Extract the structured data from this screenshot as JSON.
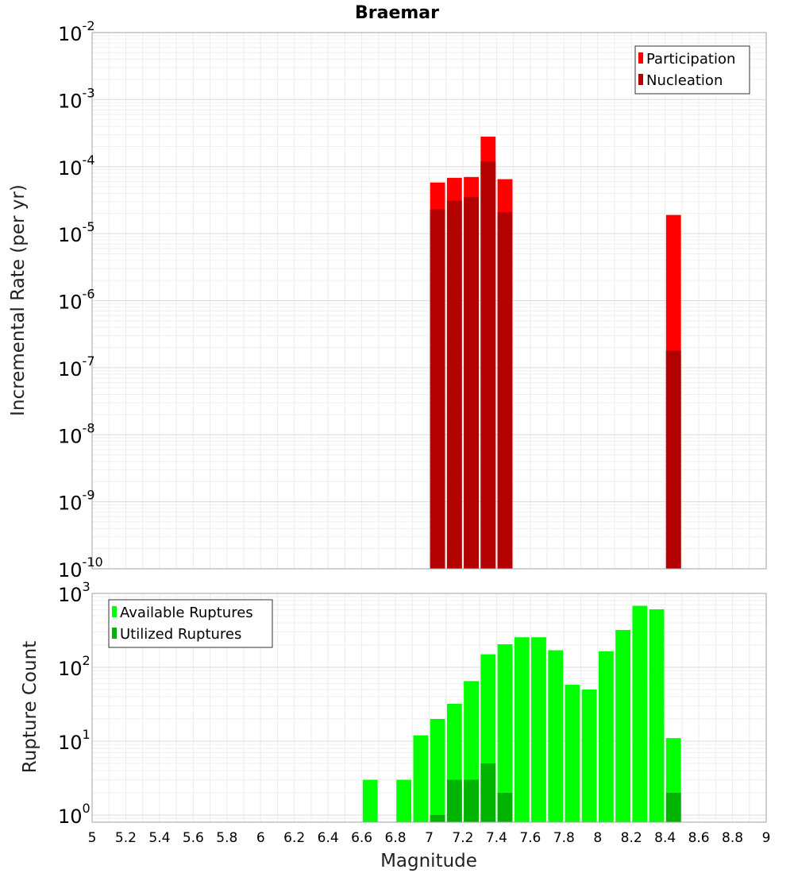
{
  "chart_data": [
    {
      "type": "bar",
      "title": "Braemar",
      "xlabel": "",
      "ylabel": "Incremental Rate (per yr)",
      "yscale": "log",
      "ylim": [
        1e-10,
        0.01
      ],
      "xlim": [
        5,
        9
      ],
      "ytick_exponents": [
        "-10",
        "-9",
        "-8",
        "-7",
        "-6",
        "-5",
        "-4",
        "-3",
        "-2"
      ],
      "legend": {
        "position": "top-right"
      },
      "series": [
        {
          "name": "Participation",
          "color": "#ff0000",
          "points": [
            {
              "x": 7.05,
              "y": 5.8e-05
            },
            {
              "x": 7.15,
              "y": 6.8e-05
            },
            {
              "x": 7.25,
              "y": 7e-05
            },
            {
              "x": 7.35,
              "y": 0.00028
            },
            {
              "x": 7.45,
              "y": 6.5e-05
            },
            {
              "x": 8.45,
              "y": 1.9e-05
            }
          ]
        },
        {
          "name": "Nucleation",
          "color": "#b30000",
          "points": [
            {
              "x": 7.05,
              "y": 2.3e-05
            },
            {
              "x": 7.15,
              "y": 3.1e-05
            },
            {
              "x": 7.25,
              "y": 3.5e-05
            },
            {
              "x": 7.35,
              "y": 0.00012
            },
            {
              "x": 7.45,
              "y": 2.1e-05
            },
            {
              "x": 8.45,
              "y": 1.8e-07
            }
          ]
        }
      ]
    },
    {
      "type": "bar",
      "title": "",
      "xlabel": "Magnitude",
      "ylabel": "Rupture Count",
      "yscale": "log",
      "ylim": [
        0.8,
        1000
      ],
      "xlim": [
        5,
        9
      ],
      "ytick_exponents": [
        "0",
        "1",
        "2",
        "3"
      ],
      "xticks": [
        "5",
        "5.2",
        "5.4",
        "5.6",
        "5.8",
        "6",
        "6.2",
        "6.4",
        "6.6",
        "6.8",
        "7",
        "7.2",
        "7.4",
        "7.6",
        "7.8",
        "8",
        "8.2",
        "8.4",
        "8.6",
        "8.8",
        "9"
      ],
      "legend": {
        "position": "top-left"
      },
      "series": [
        {
          "name": "Available Ruptures",
          "color": "#00ff00",
          "points": [
            {
              "x": 6.65,
              "y": 3
            },
            {
              "x": 6.85,
              "y": 3
            },
            {
              "x": 6.95,
              "y": 12
            },
            {
              "x": 7.05,
              "y": 20
            },
            {
              "x": 7.15,
              "y": 32
            },
            {
              "x": 7.25,
              "y": 65
            },
            {
              "x": 7.35,
              "y": 150
            },
            {
              "x": 7.45,
              "y": 205
            },
            {
              "x": 7.55,
              "y": 255
            },
            {
              "x": 7.65,
              "y": 255
            },
            {
              "x": 7.75,
              "y": 170
            },
            {
              "x": 7.85,
              "y": 58
            },
            {
              "x": 7.95,
              "y": 50
            },
            {
              "x": 8.05,
              "y": 165
            },
            {
              "x": 8.15,
              "y": 320
            },
            {
              "x": 8.25,
              "y": 680
            },
            {
              "x": 8.35,
              "y": 610
            },
            {
              "x": 8.45,
              "y": 11
            }
          ]
        },
        {
          "name": "Utilized Ruptures",
          "color": "#00b300",
          "points": [
            {
              "x": 7.05,
              "y": 1
            },
            {
              "x": 7.15,
              "y": 3
            },
            {
              "x": 7.25,
              "y": 3
            },
            {
              "x": 7.35,
              "y": 5
            },
            {
              "x": 7.45,
              "y": 2
            },
            {
              "x": 8.45,
              "y": 2
            }
          ]
        }
      ]
    }
  ]
}
